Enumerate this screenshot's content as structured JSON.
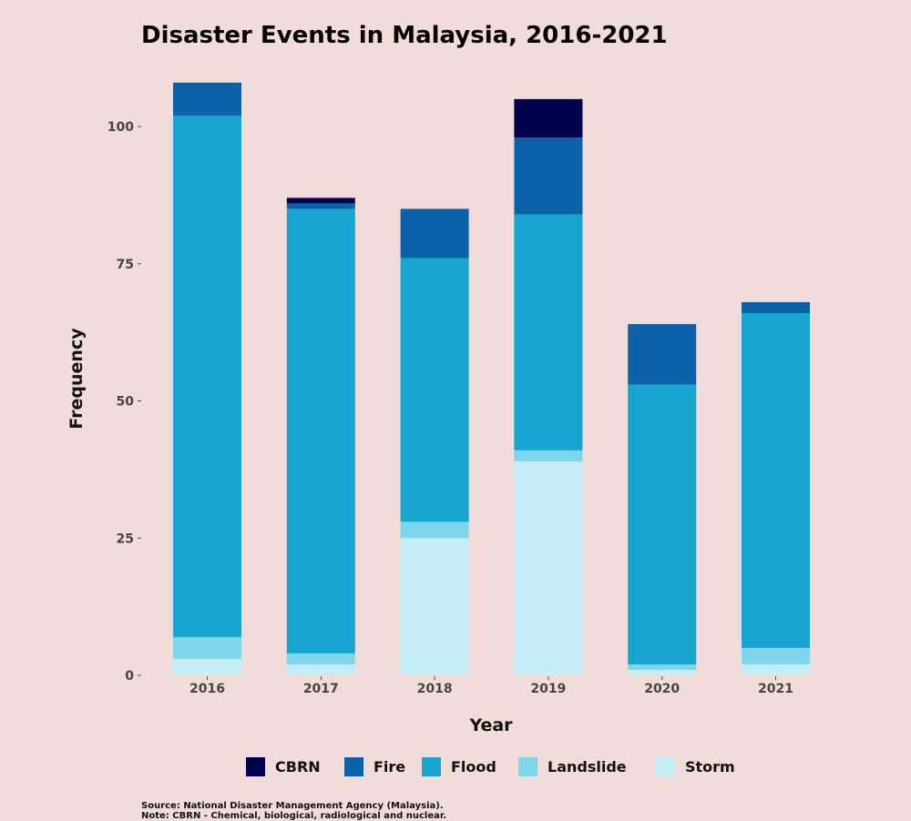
{
  "chart_data": {
    "type": "bar",
    "stacked": true,
    "title": "Disaster Events in Malaysia, 2016-2021",
    "xlabel": "Year",
    "ylabel": "Frequency",
    "categories": [
      "2016",
      "2017",
      "2018",
      "2019",
      "2020",
      "2021"
    ],
    "ylim": [
      0,
      108
    ],
    "yticks": [
      0,
      25,
      50,
      75,
      100
    ],
    "grid": false,
    "legend_position": "bottom",
    "series": [
      {
        "name": "Storm",
        "color": "#c4ecf5",
        "values": [
          3,
          2,
          25,
          39,
          1,
          2
        ]
      },
      {
        "name": "Landslide",
        "color": "#7fd6ea",
        "values": [
          4,
          2,
          3,
          2,
          1,
          3
        ]
      },
      {
        "name": "Flood",
        "color": "#17a4cf",
        "values": [
          95,
          81,
          48,
          43,
          51,
          61
        ]
      },
      {
        "name": "Fire",
        "color": "#0c62a8",
        "values": [
          6,
          1,
          9,
          14,
          11,
          2
        ]
      },
      {
        "name": "CBRN",
        "color": "#01004f",
        "values": [
          0,
          1,
          0,
          7,
          0,
          0
        ]
      }
    ],
    "legend_order": [
      "CBRN",
      "Fire",
      "Flood",
      "Landslide",
      "Storm"
    ]
  },
  "footnotes": [
    "Source: National Disaster Management Agency (Malaysia).",
    "Note: CBRN - Chemical, biological, radiological and nuclear."
  ]
}
